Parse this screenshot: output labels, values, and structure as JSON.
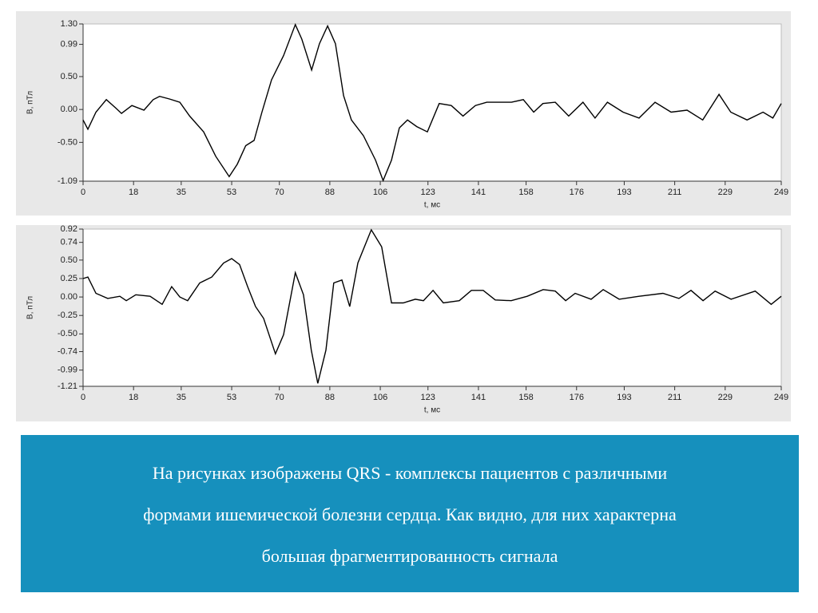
{
  "chart_data": [
    {
      "type": "line",
      "y_label": "B, пТл",
      "x_label": "t, мс",
      "color": "#000000",
      "xlim": [
        0,
        249
      ],
      "xticks": [
        0,
        18,
        35,
        53,
        70,
        88,
        106,
        123,
        141,
        158,
        176,
        193,
        211,
        229,
        249
      ],
      "ylim": [
        -1.09,
        1.3
      ],
      "yticks": [
        {
          "value": 1.3,
          "label": "1.30"
        },
        0.99,
        {
          "value": 0.5,
          "label": "0.50"
        },
        {
          "value": 0,
          "label": "0.00"
        },
        {
          "value": -0.5,
          "label": "-0.50"
        },
        -1.09
      ],
      "x": [
        0,
        1.7,
        4.6,
        8.3,
        11.7,
        13.7,
        17.4,
        21.7,
        25,
        27.3,
        30.8,
        34.5,
        38,
        43,
        47.3,
        52.1,
        55,
        58,
        61,
        63.8,
        67.2,
        71.5,
        75.7,
        78,
        81.5,
        84.3,
        87.2,
        90,
        92.9,
        95.7,
        100,
        104.3,
        107,
        110,
        112.8,
        115.7,
        119,
        122.8,
        127,
        131.3,
        135.5,
        139.9,
        144,
        152.8,
        157,
        160.7,
        164,
        168.4,
        173.2,
        178.3,
        182.6,
        187,
        192.6,
        198.3,
        204,
        209.7,
        215.4,
        221,
        226.8,
        231,
        236.8,
        242.5,
        246,
        249
      ],
      "values": [
        -0.16,
        -0.3,
        -0.04,
        0.15,
        0.02,
        -0.06,
        0.06,
        -0.01,
        0.15,
        0.2,
        0.16,
        0.11,
        -0.1,
        -0.34,
        -0.71,
        -1.02,
        -0.83,
        -0.55,
        -0.47,
        -0.04,
        0.45,
        0.82,
        1.29,
        1.07,
        0.6,
        1.0,
        1.27,
        1.0,
        0.21,
        -0.16,
        -0.4,
        -0.77,
        -1.08,
        -0.77,
        -0.28,
        -0.16,
        -0.26,
        -0.34,
        0.09,
        0.06,
        -0.1,
        0.06,
        0.11,
        0.11,
        0.15,
        -0.04,
        0.09,
        0.11,
        -0.1,
        0.11,
        -0.13,
        0.11,
        -0.04,
        -0.13,
        0.11,
        -0.04,
        -0.01,
        -0.16,
        0.23,
        -0.04,
        -0.16,
        -0.04,
        -0.13,
        0.09
      ]
    },
    {
      "type": "line",
      "y_label": "B, пТл",
      "x_label": "t, мс",
      "color": "#000000",
      "xlim": [
        0,
        249
      ],
      "xticks": [
        0,
        18,
        35,
        53,
        70,
        88,
        106,
        123,
        141,
        158,
        176,
        193,
        211,
        229,
        249
      ],
      "ylim": [
        -1.21,
        0.92
      ],
      "yticks": [
        0.92,
        0.74,
        {
          "value": 0.5,
          "label": "0.50"
        },
        0.25,
        {
          "value": 0,
          "label": "0.00"
        },
        -0.25,
        {
          "value": -0.5,
          "label": "-0.50"
        },
        -0.74,
        -0.99,
        -1.21
      ],
      "x": [
        0,
        1.7,
        4.6,
        8.8,
        13.1,
        15.4,
        18.8,
        23.9,
        28.2,
        31.6,
        34.5,
        37.3,
        41.6,
        45.9,
        50.1,
        53,
        55.8,
        58.7,
        61.5,
        64.4,
        68.6,
        71.5,
        75.7,
        78.6,
        81.4,
        83.7,
        86.6,
        89.4,
        92.3,
        95.1,
        98,
        102.8,
        106.5,
        110,
        114.2,
        118.5,
        121.4,
        124.8,
        128.5,
        134.2,
        138.5,
        142.7,
        147,
        152.7,
        158.4,
        164.1,
        168.4,
        172.1,
        175.5,
        181.2,
        185.5,
        191.2,
        198.3,
        206.8,
        212.5,
        216.8,
        221.1,
        225.4,
        231.1,
        239.7,
        245.4,
        249
      ],
      "values": [
        0.25,
        0.27,
        0.05,
        -0.02,
        0.01,
        -0.05,
        0.03,
        0.01,
        -0.1,
        0.14,
        0,
        -0.05,
        0.19,
        0.27,
        0.46,
        0.52,
        0.44,
        0.14,
        -0.13,
        -0.29,
        -0.77,
        -0.51,
        0.33,
        0.03,
        -0.72,
        -1.17,
        -0.72,
        0.19,
        0.23,
        -0.13,
        0.46,
        0.91,
        0.68,
        -0.08,
        -0.08,
        -0.03,
        -0.05,
        0.09,
        -0.08,
        -0.05,
        0.09,
        0.09,
        -0.04,
        -0.05,
        0.01,
        0.1,
        0.08,
        -0.05,
        0.05,
        -0.03,
        0.1,
        -0.03,
        0.01,
        0.05,
        -0.02,
        0.09,
        -0.05,
        0.08,
        -0.03,
        0.08,
        -0.1,
        0.01
      ]
    }
  ],
  "caption": [
    "На рисунках изображены QRS - комплексы пациентов с различными",
    "формами ишемической болезни сердца. Как видно, для них характерна",
    "большая фрагментированность сигнала"
  ]
}
